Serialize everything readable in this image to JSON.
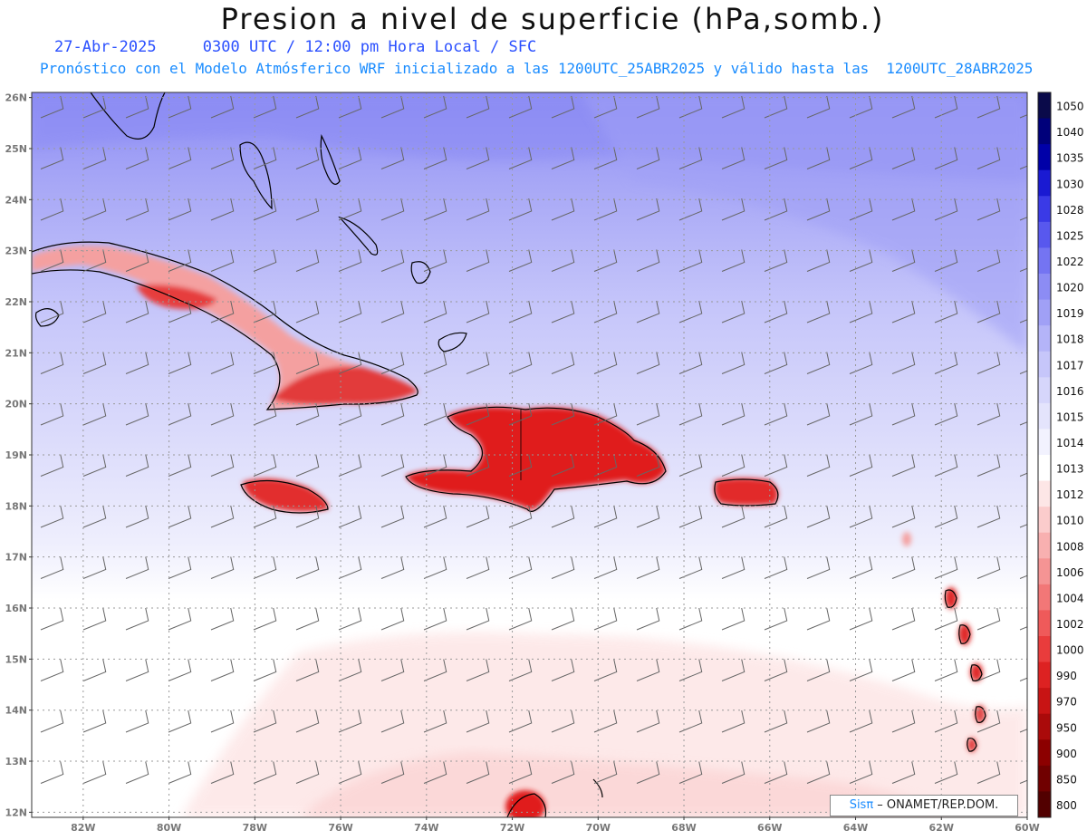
{
  "header": {
    "title": "Presion a nivel de superficie (hPa,somb.)",
    "date": "27-Abr-2025",
    "time_info": "0300 UTC / 12:00 pm Hora Local / SFC",
    "forecast_info": "Pronóstico con el Modelo Atmósferico WRF inicializado a las 1200UTC_25ABR2025 y válido hasta las  1200UTC_28ABR2025"
  },
  "credit": {
    "brand": "Sisπ",
    "org": " – ONAMET/REP.DOM."
  },
  "map": {
    "lat_labels": [
      "26N",
      "25N",
      "24N",
      "23N",
      "22N",
      "21N",
      "20N",
      "19N",
      "18N",
      "17N",
      "16N",
      "15N",
      "14N",
      "13N",
      "12N"
    ],
    "lon_labels": [
      "82W",
      "80W",
      "78W",
      "76W",
      "74W",
      "72W",
      "70W",
      "68W",
      "66W",
      "64W",
      "62W",
      "60W"
    ],
    "lat_range": [
      11.9,
      26.1
    ],
    "lon_range": [
      -83.2,
      -60.0
    ]
  },
  "colorbar": {
    "levels": [
      "1050",
      "1040",
      "1035",
      "1030",
      "1028",
      "1025",
      "1022",
      "1020",
      "1019",
      "1018",
      "1017",
      "1016",
      "1015",
      "1014",
      "1013",
      "1012",
      "1010",
      "1008",
      "1006",
      "1004",
      "1002",
      "1000",
      "990",
      "970",
      "950",
      "900",
      "850",
      "800"
    ],
    "colors": [
      "#0a0a4a",
      "#00007a",
      "#0000a8",
      "#1a1ad2",
      "#3a3ae6",
      "#5858ee",
      "#7474f2",
      "#8c8cf4",
      "#a0a0f6",
      "#b4b4f8",
      "#c6c6fa",
      "#d6d6fb",
      "#e4e4fc",
      "#f2f2fe",
      "#ffffff",
      "#fde6e6",
      "#fbcccc",
      "#f8b0b0",
      "#f59494",
      "#f27777",
      "#ef5a5a",
      "#e93c3c",
      "#dd2222",
      "#c81414",
      "#aa0a0a",
      "#8c0000",
      "#700000",
      "#520000"
    ]
  }
}
